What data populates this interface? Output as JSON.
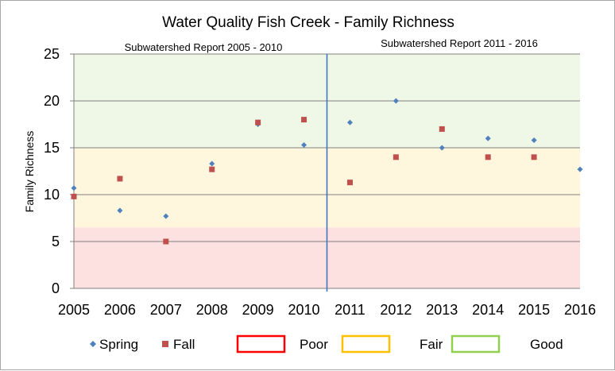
{
  "chart_data": {
    "type": "scatter",
    "title": "Water Quality Fish Creek - Family Richness",
    "ylabel": "Family Richness",
    "xlabel": "",
    "xlim": [
      2005,
      2016
    ],
    "ylim": [
      0,
      25
    ],
    "x_ticks": [
      "2005",
      "2006",
      "2007",
      "2008",
      "2009",
      "2010",
      "2011",
      "2012",
      "2013",
      "2014",
      "2015",
      "2016"
    ],
    "y_ticks": [
      "0",
      "5",
      "10",
      "15",
      "20",
      "25"
    ],
    "grid": true,
    "divider_year": 2010.5,
    "period_labels": [
      "Subwatershed  Report 2005 - 2010",
      "Subwatershed  Report 2011  - 2016"
    ],
    "bands": [
      {
        "name": "Poor",
        "from": 0,
        "to": 6.5,
        "fill": "#fde0e0",
        "border": "#ff0000"
      },
      {
        "name": "Fair",
        "from": 6.5,
        "to": 15,
        "fill": "#fef6dd",
        "border": "#ffc000"
      },
      {
        "name": "Good",
        "from": 15,
        "to": 25,
        "fill": "#eff7e6",
        "border": "#92d050"
      }
    ],
    "series": [
      {
        "name": "Spring",
        "marker": "diamond",
        "color": "#4f81bd",
        "points": [
          [
            2005,
            10.7
          ],
          [
            2006,
            8.3
          ],
          [
            2007,
            7.7
          ],
          [
            2008,
            13.3
          ],
          [
            2009,
            17.5
          ],
          [
            2010,
            15.3
          ],
          [
            2011,
            17.7
          ],
          [
            2012,
            20
          ],
          [
            2013,
            15
          ],
          [
            2014,
            16
          ],
          [
            2015,
            15.8
          ],
          [
            2016,
            12.7
          ]
        ]
      },
      {
        "name": "Fall",
        "marker": "square",
        "color": "#c0504d",
        "points": [
          [
            2005,
            9.8
          ],
          [
            2006,
            11.7
          ],
          [
            2007,
            5
          ],
          [
            2008,
            12.7
          ],
          [
            2009,
            17.7
          ],
          [
            2010,
            18
          ],
          [
            2011,
            11.3
          ],
          [
            2012,
            14
          ],
          [
            2013,
            17
          ],
          [
            2014,
            14
          ],
          [
            2015,
            14
          ]
        ]
      }
    ],
    "legend_position": "bottom",
    "colors": {
      "divider": "#4472c4",
      "grid": "#808080",
      "axis": "#808080"
    }
  }
}
